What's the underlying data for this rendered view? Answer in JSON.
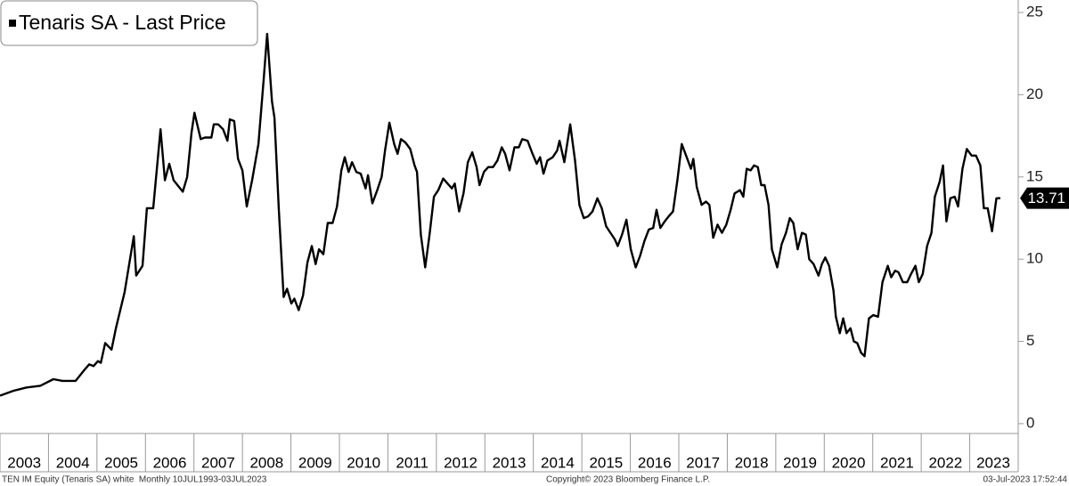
{
  "chart_data": {
    "type": "line",
    "series": [
      {
        "name": "Tenaris SA - Last Price",
        "color": "#000000",
        "x": [
          2003.0,
          2003.28,
          2003.55,
          2003.83,
          2004.1,
          2004.29,
          2004.56,
          2004.75,
          2004.84,
          2004.93,
          2005.02,
          2005.08,
          2005.17,
          2005.3,
          2005.39,
          2005.57,
          2005.76,
          2005.81,
          2005.94,
          2006.03,
          2006.16,
          2006.31,
          2006.4,
          2006.49,
          2006.58,
          2006.77,
          2006.86,
          2006.95,
          2007.01,
          2007.14,
          2007.23,
          2007.36,
          2007.41,
          2007.5,
          2007.6,
          2007.69,
          2007.74,
          2007.83,
          2007.91,
          2008.0,
          2008.09,
          2008.2,
          2008.33,
          2008.44,
          2008.51,
          2008.61,
          2008.66,
          2008.75,
          2008.85,
          2008.92,
          2009.01,
          2009.07,
          2009.16,
          2009.25,
          2009.34,
          2009.43,
          2009.51,
          2009.58,
          2009.67,
          2009.76,
          2009.86,
          2009.95,
          2010.04,
          2010.11,
          2010.19,
          2010.26,
          2010.35,
          2010.44,
          2010.54,
          2010.59,
          2010.68,
          2010.78,
          2010.87,
          2010.94,
          2011.03,
          2011.13,
          2011.2,
          2011.27,
          2011.36,
          2011.46,
          2011.55,
          2011.6,
          2011.68,
          2011.77,
          2011.86,
          2011.95,
          2012.04,
          2012.14,
          2012.23,
          2012.32,
          2012.38,
          2012.47,
          2012.56,
          2012.65,
          2012.74,
          2012.83,
          2012.89,
          2012.98,
          2013.07,
          2013.17,
          2013.26,
          2013.35,
          2013.42,
          2013.51,
          2013.61,
          2013.7,
          2013.77,
          2013.88,
          2013.97,
          2014.07,
          2014.14,
          2014.21,
          2014.29,
          2014.4,
          2014.49,
          2014.54,
          2014.64,
          2014.76,
          2014.86,
          2014.95,
          2015.04,
          2015.13,
          2015.22,
          2015.32,
          2015.41,
          2015.5,
          2015.59,
          2015.68,
          2015.74,
          2015.83,
          2015.92,
          2016.01,
          2016.11,
          2016.2,
          2016.29,
          2016.38,
          2016.47,
          2016.54,
          2016.62,
          2016.71,
          2016.79,
          2016.88,
          2016.97,
          2017.06,
          2017.15,
          2017.25,
          2017.3,
          2017.37,
          2017.47,
          2017.56,
          2017.63,
          2017.71,
          2017.8,
          2017.89,
          2017.98,
          2018.07,
          2018.15,
          2018.26,
          2018.33,
          2018.4,
          2018.48,
          2018.55,
          2018.63,
          2018.7,
          2018.77,
          2018.85,
          2018.92,
          2019.03,
          2019.12,
          2019.21,
          2019.29,
          2019.36,
          2019.45,
          2019.54,
          2019.62,
          2019.69,
          2019.78,
          2019.88,
          2019.95,
          2020.02,
          2020.1,
          2020.19,
          2020.24,
          2020.32,
          2020.39,
          2020.46,
          2020.54,
          2020.61,
          2020.68,
          2020.76,
          2020.83,
          2020.92,
          2021.01,
          2021.11,
          2021.2,
          2021.31,
          2021.38,
          2021.46,
          2021.53,
          2021.62,
          2021.71,
          2021.79,
          2021.88,
          2021.95,
          2022.03,
          2022.12,
          2022.21,
          2022.28,
          2022.38,
          2022.45,
          2022.52,
          2022.6,
          2022.69,
          2022.76,
          2022.85,
          2022.94,
          2023.04,
          2023.13,
          2023.22,
          2023.29,
          2023.37,
          2023.46,
          2023.55,
          2023.63
        ],
        "values": [
          1.7,
          2.0,
          2.2,
          2.3,
          2.7,
          2.6,
          2.6,
          3.3,
          3.6,
          3.5,
          3.8,
          3.7,
          4.9,
          4.5,
          5.8,
          8.0,
          11.4,
          9.0,
          9.6,
          13.1,
          13.1,
          17.9,
          14.8,
          15.8,
          14.8,
          14.1,
          15.0,
          17.7,
          18.9,
          17.3,
          17.4,
          17.4,
          18.2,
          18.2,
          17.9,
          17.2,
          18.5,
          18.4,
          16.1,
          15.4,
          13.2,
          14.8,
          17.0,
          21.0,
          23.7,
          19.6,
          18.6,
          13.0,
          7.7,
          8.2,
          7.3,
          7.6,
          6.9,
          7.8,
          9.8,
          10.8,
          9.7,
          10.6,
          10.3,
          12.2,
          12.2,
          13.2,
          15.4,
          16.2,
          15.3,
          15.9,
          15.3,
          15.2,
          14.3,
          15.1,
          13.4,
          14.2,
          15.0,
          16.6,
          18.3,
          17.0,
          16.4,
          17.3,
          17.1,
          16.7,
          15.7,
          15.3,
          11.5,
          9.5,
          11.5,
          13.8,
          14.2,
          14.9,
          14.6,
          14.3,
          14.6,
          12.9,
          14.0,
          15.9,
          16.5,
          15.6,
          14.5,
          15.3,
          15.6,
          15.6,
          16.0,
          16.8,
          16.4,
          15.4,
          16.8,
          16.8,
          17.3,
          17.2,
          16.5,
          15.8,
          16.2,
          15.2,
          16.0,
          16.2,
          16.6,
          17.2,
          15.9,
          18.2,
          16.0,
          13.3,
          12.5,
          12.6,
          12.9,
          13.7,
          13.1,
          12.0,
          11.6,
          11.2,
          10.8,
          11.5,
          12.4,
          10.6,
          9.5,
          10.2,
          11.1,
          11.8,
          11.9,
          13.0,
          11.9,
          12.3,
          12.6,
          12.9,
          14.8,
          17.0,
          16.3,
          15.5,
          16.1,
          14.4,
          13.3,
          13.5,
          13.3,
          11.3,
          12.1,
          11.6,
          12.1,
          13.0,
          14.0,
          14.2,
          13.8,
          15.5,
          15.4,
          15.7,
          15.6,
          14.5,
          14.5,
          13.3,
          10.6,
          9.5,
          10.9,
          11.6,
          12.5,
          12.2,
          10.6,
          11.6,
          11.5,
          10.0,
          9.7,
          9.0,
          9.7,
          10.1,
          9.6,
          8.1,
          6.5,
          5.5,
          6.4,
          5.5,
          5.8,
          5.0,
          4.9,
          4.3,
          4.1,
          6.4,
          6.6,
          6.5,
          8.6,
          9.6,
          8.9,
          9.3,
          9.2,
          8.6,
          8.6,
          9.1,
          9.6,
          8.6,
          9.1,
          10.8,
          11.6,
          13.8,
          14.7,
          15.7,
          12.3,
          13.7,
          13.8,
          13.2,
          15.5,
          16.7,
          16.3,
          16.3,
          15.7,
          13.1,
          13.1,
          11.7,
          13.7,
          13.71
        ]
      }
    ],
    "xlim": [
      2003,
      2024
    ],
    "xticks": [
      2003,
      2004,
      2005,
      2006,
      2007,
      2008,
      2009,
      2010,
      2011,
      2012,
      2013,
      2014,
      2015,
      2016,
      2017,
      2018,
      2019,
      2020,
      2021,
      2022,
      2023
    ],
    "ylim": [
      -0.6,
      25.76
    ],
    "yticks": [
      0,
      5,
      10,
      15,
      20,
      25
    ],
    "legend": "top-left",
    "footer": {
      "left": "TEN IM Equity (Tenaris SA) white  Monthly 10JUL1993-03JUL2023",
      "center": "Copyright© 2023 Bloomberg Finance L.P.",
      "right": "03-Jul-2023 17:52:44"
    }
  }
}
